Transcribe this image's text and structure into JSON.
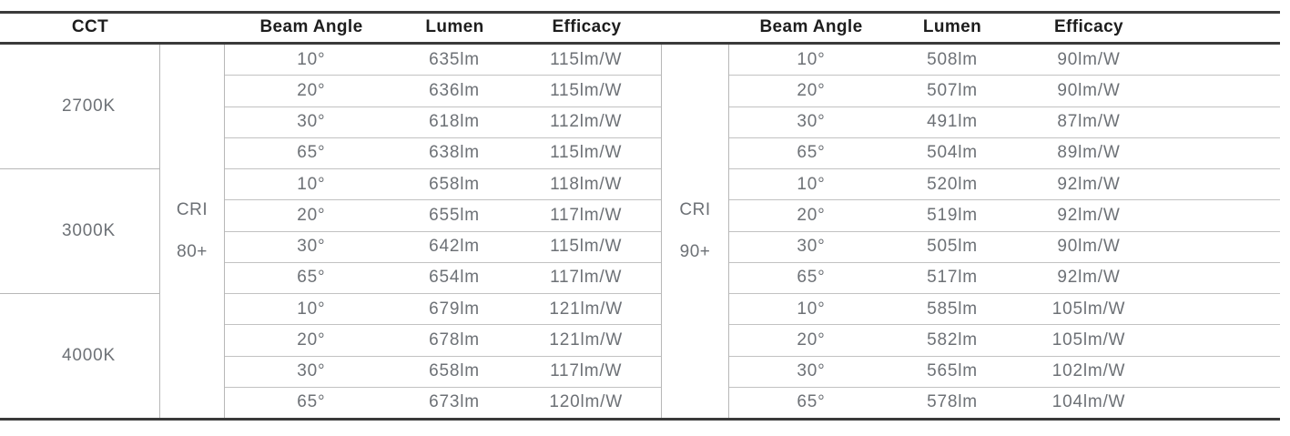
{
  "colors": {
    "background": "#ffffff",
    "thick_rule": "#3a3a3a",
    "thin_rule": "#b7b7b7",
    "header_text": "#1d1d1d",
    "data_text": "#6d7176"
  },
  "table": {
    "columns": {
      "cct": "CCT",
      "beam_angle": "Beam Angle",
      "lumen": "Lumen",
      "efficacy": "Efficacy"
    },
    "cri80": {
      "line1": "CRI",
      "line2": "80+"
    },
    "cri90": {
      "line1": "CRI",
      "line2": "90+"
    },
    "groups": [
      {
        "cct": "2700K",
        "rows": [
          {
            "beam_angle": "10°",
            "cri80": {
              "lumen": "635lm",
              "efficacy": "115lm/W"
            },
            "cri90": {
              "lumen": "508lm",
              "efficacy": "90lm/W"
            }
          },
          {
            "beam_angle": "20°",
            "cri80": {
              "lumen": "636lm",
              "efficacy": "115lm/W"
            },
            "cri90": {
              "lumen": "507lm",
              "efficacy": "90lm/W"
            }
          },
          {
            "beam_angle": "30°",
            "cri80": {
              "lumen": "618lm",
              "efficacy": "112lm/W"
            },
            "cri90": {
              "lumen": "491lm",
              "efficacy": "87lm/W"
            }
          },
          {
            "beam_angle": "65°",
            "cri80": {
              "lumen": "638lm",
              "efficacy": "115lm/W"
            },
            "cri90": {
              "lumen": "504lm",
              "efficacy": "89lm/W"
            }
          }
        ]
      },
      {
        "cct": "3000K",
        "rows": [
          {
            "beam_angle": "10°",
            "cri80": {
              "lumen": "658lm",
              "efficacy": "118lm/W"
            },
            "cri90": {
              "lumen": "520lm",
              "efficacy": "92lm/W"
            }
          },
          {
            "beam_angle": "20°",
            "cri80": {
              "lumen": "655lm",
              "efficacy": "117lm/W"
            },
            "cri90": {
              "lumen": "519lm",
              "efficacy": "92lm/W"
            }
          },
          {
            "beam_angle": "30°",
            "cri80": {
              "lumen": "642lm",
              "efficacy": "115lm/W"
            },
            "cri90": {
              "lumen": "505lm",
              "efficacy": "90lm/W"
            }
          },
          {
            "beam_angle": "65°",
            "cri80": {
              "lumen": "654lm",
              "efficacy": "117lm/W"
            },
            "cri90": {
              "lumen": "517lm",
              "efficacy": "92lm/W"
            }
          }
        ]
      },
      {
        "cct": "4000K",
        "rows": [
          {
            "beam_angle": "10°",
            "cri80": {
              "lumen": "679lm",
              "efficacy": "121lm/W"
            },
            "cri90": {
              "lumen": "585lm",
              "efficacy": "105lm/W"
            }
          },
          {
            "beam_angle": "20°",
            "cri80": {
              "lumen": "678lm",
              "efficacy": "121lm/W"
            },
            "cri90": {
              "lumen": "582lm",
              "efficacy": "105lm/W"
            }
          },
          {
            "beam_angle": "30°",
            "cri80": {
              "lumen": "658lm",
              "efficacy": "117lm/W"
            },
            "cri90": {
              "lumen": "565lm",
              "efficacy": "102lm/W"
            }
          },
          {
            "beam_angle": "65°",
            "cri80": {
              "lumen": "673lm",
              "efficacy": "120lm/W"
            },
            "cri90": {
              "lumen": "578lm",
              "efficacy": "104lm/W"
            }
          }
        ]
      }
    ]
  }
}
